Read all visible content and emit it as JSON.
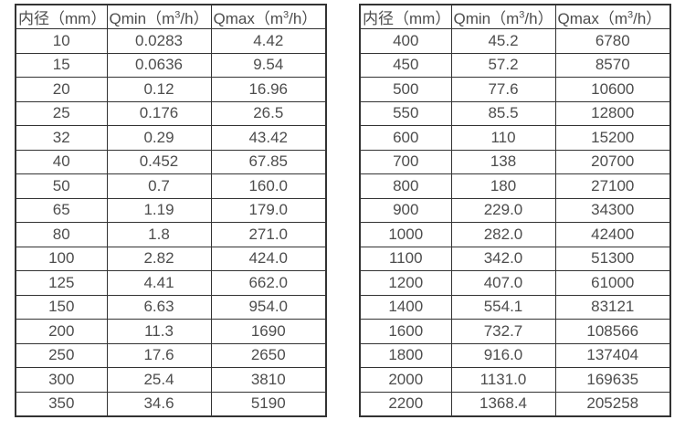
{
  "text_color": "#4d4d4d",
  "border_color": "#333333",
  "background_color": "#ffffff",
  "tables": [
    {
      "name": "flow-table-small-diameters",
      "headers": [
        {
          "pre": "内径（mm）",
          "sup": "",
          "post": ""
        },
        {
          "pre": "Qmin（m",
          "sup": "3",
          "post": "/h）"
        },
        {
          "pre": "Qmax（m",
          "sup": "3",
          "post": "/h）"
        }
      ],
      "rows": [
        [
          "10",
          "0.0283",
          "4.42"
        ],
        [
          "15",
          "0.0636",
          "9.54"
        ],
        [
          "20",
          "0.12",
          "16.96"
        ],
        [
          "25",
          "0.176",
          "26.5"
        ],
        [
          "32",
          "0.29",
          "43.42"
        ],
        [
          "40",
          "0.452",
          "67.85"
        ],
        [
          "50",
          "0.7",
          "160.0"
        ],
        [
          "65",
          "1.19",
          "179.0"
        ],
        [
          "80",
          "1.8",
          "271.0"
        ],
        [
          "100",
          "2.82",
          "424.0"
        ],
        [
          "125",
          "4.41",
          "662.0"
        ],
        [
          "150",
          "6.63",
          "954.0"
        ],
        [
          "200",
          "11.3",
          "1690"
        ],
        [
          "250",
          "17.6",
          "2650"
        ],
        [
          "300",
          "25.4",
          "3810"
        ],
        [
          "350",
          "34.6",
          "5190"
        ]
      ]
    },
    {
      "name": "flow-table-large-diameters",
      "headers": [
        {
          "pre": "内径（mm）",
          "sup": "",
          "post": ""
        },
        {
          "pre": "Qmin（m",
          "sup": "3",
          "post": "/h）"
        },
        {
          "pre": "Qmax（m",
          "sup": "3",
          "post": "/h）"
        }
      ],
      "rows": [
        [
          "400",
          "45.2",
          "6780"
        ],
        [
          "450",
          "57.2",
          "8570"
        ],
        [
          "500",
          "77.6",
          "10600"
        ],
        [
          "550",
          "85.5",
          "12800"
        ],
        [
          "600",
          "110",
          "15200"
        ],
        [
          "700",
          "138",
          "20700"
        ],
        [
          "800",
          "180",
          "27100"
        ],
        [
          "900",
          "229.0",
          "34300"
        ],
        [
          "1000",
          "282.0",
          "42400"
        ],
        [
          "1100",
          "342.0",
          "51300"
        ],
        [
          "1200",
          "407.0",
          "61000"
        ],
        [
          "1400",
          "554.1",
          "83121"
        ],
        [
          "1600",
          "732.7",
          "108566"
        ],
        [
          "1800",
          "916.0",
          "137404"
        ],
        [
          "2000",
          "1131.0",
          "169635"
        ],
        [
          "2200",
          "1368.4",
          "205258"
        ]
      ]
    }
  ]
}
